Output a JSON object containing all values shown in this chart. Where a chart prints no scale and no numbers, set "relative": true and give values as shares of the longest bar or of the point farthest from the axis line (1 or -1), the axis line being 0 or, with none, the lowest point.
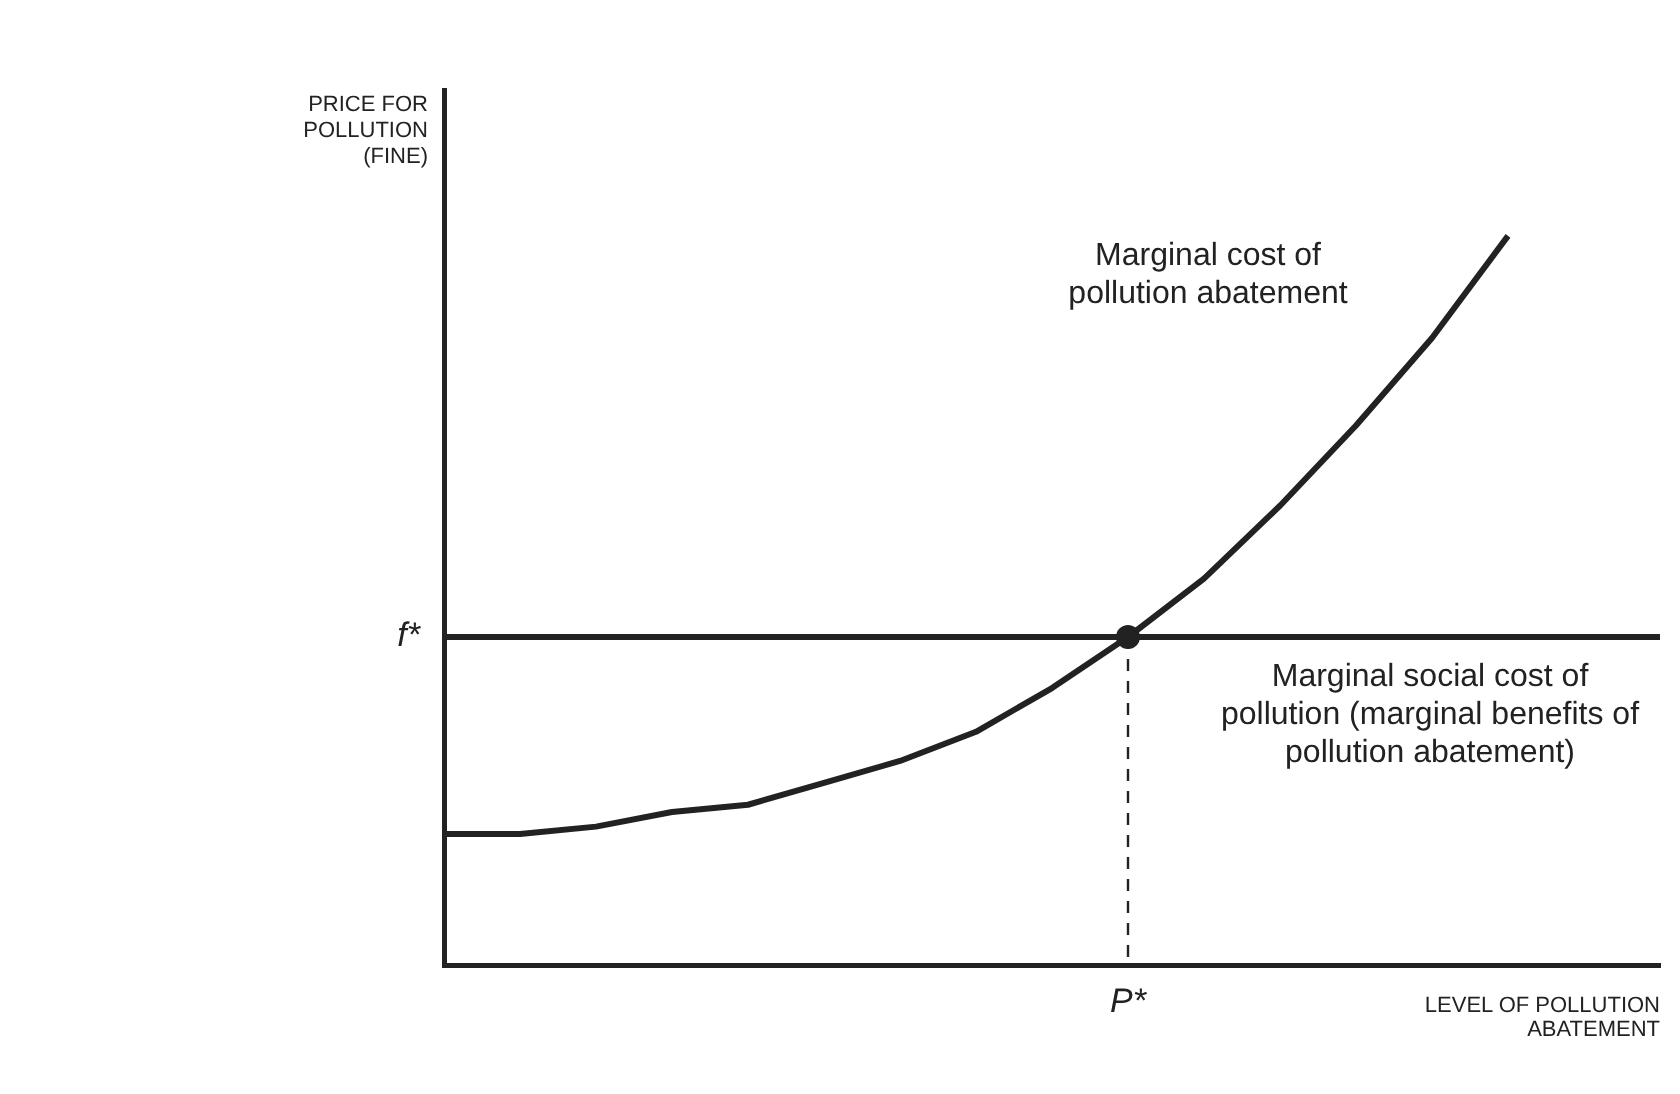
{
  "chart_data": {
    "type": "line",
    "relative": true,
    "xlabel": "LEVEL OF POLLUTION ABATEMENT",
    "ylabel": "PRICE FOR POLLUTION (FINE)",
    "categories": [
      null,
      null,
      null,
      null,
      null,
      null,
      null,
      null,
      null,
      null,
      null,
      null,
      null,
      null,
      null,
      null,
      null
    ],
    "series": [
      {
        "name": "Marginal cost of pollution abatement",
        "color": "#222222",
        "values": [
          0.18,
          0.18,
          0.19,
          0.21,
          0.22,
          0.25,
          0.28,
          0.32,
          0.38,
          0.45,
          0.53,
          0.63,
          0.74,
          0.86,
          1,
          null,
          null
        ]
      },
      {
        "name": "Marginal social cost of pollution (marginal benefits of pollution abatement)",
        "color": "#222222",
        "values": [
          0.45,
          0.45,
          0.45,
          0.45,
          0.45,
          0.45,
          0.45,
          0.45,
          0.45,
          0.45,
          0.45,
          0.45,
          0.45,
          0.45,
          0.45,
          0.45,
          0.45
        ]
      }
    ],
    "marker": "none",
    "line_style": "solid",
    "grid": false,
    "legend": false,
    "annotations": [
      "f*",
      "P*"
    ]
  }
}
